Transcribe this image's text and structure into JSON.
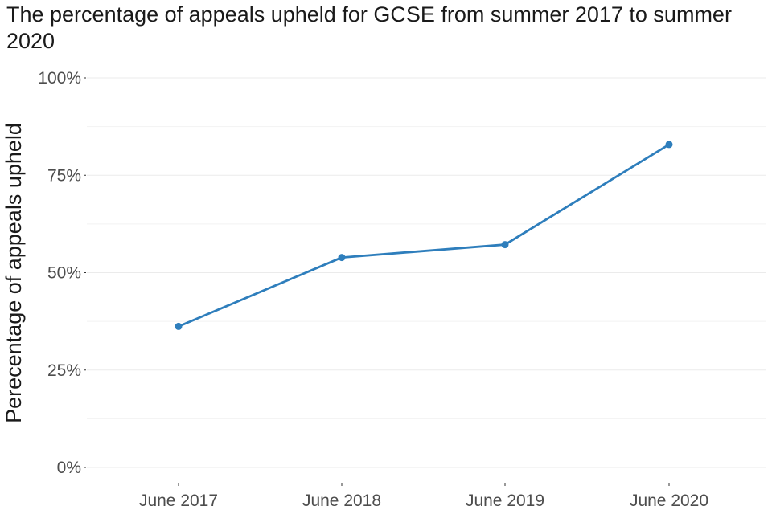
{
  "chart_data": {
    "type": "line",
    "title": "The percentage of appeals upheld for GCSE from summer 2017 to summer 2020",
    "xlabel": "",
    "ylabel": "Perecentage of appeals upheld",
    "categories": [
      "June 2017",
      "June 2018",
      "June 2019",
      "June 2020"
    ],
    "series": [
      {
        "values": [
          36.2,
          53.9,
          57.2,
          82.9
        ],
        "color": "#2e7ebc"
      }
    ],
    "ylim": [
      0,
      100
    ],
    "y_ticks": [
      0,
      25,
      50,
      75,
      100
    ],
    "y_tick_labels": [
      "0%",
      "25%",
      "50%",
      "75%",
      "100%"
    ],
    "grid": true,
    "legend": "none"
  }
}
